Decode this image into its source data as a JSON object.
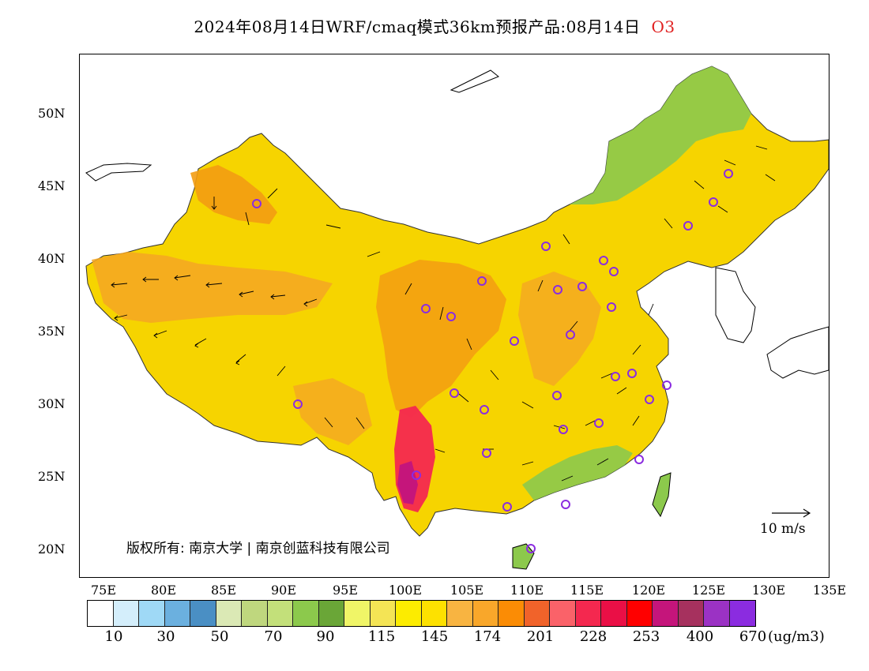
{
  "title": {
    "text": "2024年08月14日WRF/cmaq模式36km预报产品:08月14日",
    "species": "O3"
  },
  "axes": {
    "lat_labels": [
      "50N",
      "45N",
      "40N",
      "35N",
      "30N",
      "25N",
      "20N"
    ],
    "lon_labels": [
      "75E",
      "80E",
      "85E",
      "90E",
      "95E",
      "100E",
      "105E",
      "110E",
      "115E",
      "120E",
      "125E",
      "130E",
      "135E"
    ]
  },
  "map": {
    "copyright": "版权所有: 南京大学 | 南京创蓝科技有限公司",
    "wind_reference": "10 m/s"
  },
  "legend": {
    "colors": [
      "#ffffff",
      "#d4eefb",
      "#9fd9f6",
      "#6bb0df",
      "#4a8fc4",
      "#dbe9b5",
      "#bfd77e",
      "#c3e07a",
      "#8cc94c",
      "#6aa637",
      "#f0f567",
      "#f4e455",
      "#fcec00",
      "#fde100",
      "#f8b441",
      "#f9a72a",
      "#fb8c05",
      "#f1632a",
      "#fa6269",
      "#f4284f",
      "#ea0f46",
      "#ff0000",
      "#c5157b",
      "#a6315e",
      "#9b32c4",
      "#8b2ce0"
    ],
    "labels": [
      "10",
      "30",
      "50",
      "70",
      "90",
      "115",
      "145",
      "174",
      "201",
      "228",
      "253",
      "400",
      "670"
    ],
    "unit": "(ug/m3)"
  }
}
